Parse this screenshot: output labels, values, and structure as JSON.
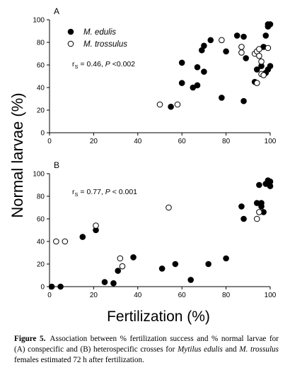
{
  "figure": {
    "y_axis_label": "Normal larvae (%)",
    "x_axis_label": "Fertilization (%)",
    "caption": {
      "label": "Figure 5.",
      "text_1": "Association between % fertilization success and % normal larvae for (A) conspecific and (B) heterospecific crosses for ",
      "species_1": "Mytilus edulis",
      "text_2": " and ",
      "species_2": "M. trossulus",
      "text_3": " females estimated 72 h after fertilization."
    }
  },
  "chart_data": [
    {
      "type": "scatter",
      "panel_label": "A",
      "xlim": [
        0,
        100
      ],
      "ylim": [
        0,
        100
      ],
      "x_ticks": [
        "0",
        "20",
        "40",
        "60",
        "80",
        "100"
      ],
      "y_ticks": [
        "0",
        "20",
        "40",
        "60",
        "80",
        "100"
      ],
      "stat_symbol": "r",
      "stat_subscript": "S",
      "stat_text": " = 0.46, ",
      "p_symbol": "P",
      "p_text": " <0.002",
      "legend": {
        "placement": "top-left",
        "entries": [
          "M. edulis",
          "M. trossulus"
        ]
      },
      "series": [
        {
          "name": "M. edulis",
          "marker": "filled-circle",
          "color": "#000000",
          "points": [
            [
              55,
              23
            ],
            [
              60,
              44
            ],
            [
              60,
              62
            ],
            [
              65,
              40
            ],
            [
              67,
              42
            ],
            [
              67,
              58
            ],
            [
              69,
              73
            ],
            [
              70,
              77
            ],
            [
              70,
              54
            ],
            [
              73,
              82
            ],
            [
              78,
              31
            ],
            [
              80,
              72
            ],
            [
              85,
              86
            ],
            [
              88,
              85
            ],
            [
              88,
              28
            ],
            [
              89,
              66
            ],
            [
              93,
              45
            ],
            [
              94,
              56
            ],
            [
              96,
              59
            ],
            [
              97,
              76
            ],
            [
              98,
              86
            ],
            [
              99,
              56
            ],
            [
              99,
              94
            ],
            [
              99,
              96
            ],
            [
              100,
              96
            ],
            [
              100,
              59
            ],
            [
              98,
              53
            ]
          ]
        },
        {
          "name": "M. trossulus",
          "marker": "open-circle",
          "color": "#000000",
          "points": [
            [
              50,
              25
            ],
            [
              58,
              25
            ],
            [
              78,
              82
            ],
            [
              87,
              71
            ],
            [
              87,
              76
            ],
            [
              93,
              70
            ],
            [
              94,
              72
            ],
            [
              94,
              44
            ],
            [
              95,
              68
            ],
            [
              95,
              74
            ],
            [
              96,
              63
            ],
            [
              96,
              52
            ],
            [
              97,
              51
            ],
            [
              99,
              75
            ]
          ]
        }
      ]
    },
    {
      "type": "scatter",
      "panel_label": "B",
      "xlim": [
        0,
        100
      ],
      "ylim": [
        0,
        100
      ],
      "x_ticks": [
        "0",
        "20",
        "40",
        "60",
        "80",
        "100"
      ],
      "y_ticks": [
        "0",
        "20",
        "40",
        "60",
        "80",
        "100"
      ],
      "stat_symbol": "r",
      "stat_subscript": "S",
      "stat_text": " = 0.77, ",
      "p_symbol": "P",
      "p_text": " < 0.001",
      "series": [
        {
          "name": "M. edulis",
          "marker": "filled-circle",
          "color": "#000000",
          "points": [
            [
              1,
              0
            ],
            [
              5,
              0
            ],
            [
              15,
              44
            ],
            [
              21,
              50
            ],
            [
              25,
              4
            ],
            [
              29,
              3
            ],
            [
              31,
              14
            ],
            [
              38,
              26
            ],
            [
              51,
              16
            ],
            [
              57,
              20
            ],
            [
              64,
              6
            ],
            [
              72,
              20
            ],
            [
              80,
              25
            ],
            [
              87,
              71
            ],
            [
              88,
              60
            ],
            [
              94,
              74
            ],
            [
              95,
              90
            ],
            [
              96,
              74
            ],
            [
              96,
              71
            ],
            [
              97,
              66
            ],
            [
              98,
              91
            ],
            [
              99,
              94
            ],
            [
              99,
              91
            ],
            [
              100,
              93
            ],
            [
              100,
              89
            ]
          ]
        },
        {
          "name": "M. trossulus",
          "marker": "open-circle",
          "color": "#000000",
          "points": [
            [
              3,
              40
            ],
            [
              7,
              40
            ],
            [
              21,
              54
            ],
            [
              32,
              25
            ],
            [
              33,
              18
            ],
            [
              54,
              70
            ],
            [
              94,
              60
            ],
            [
              95,
              66
            ]
          ]
        }
      ]
    }
  ]
}
